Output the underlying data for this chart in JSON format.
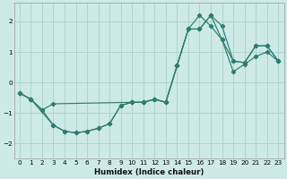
{
  "xlabel": "Humidex (Indice chaleur)",
  "background_color": "#ceeae6",
  "grid_color": "#add4d0",
  "line_color": "#2e7d72",
  "xlim": [
    -0.5,
    23.5
  ],
  "ylim": [
    -2.5,
    2.6
  ],
  "xticks": [
    0,
    1,
    2,
    3,
    4,
    5,
    6,
    7,
    8,
    9,
    10,
    11,
    12,
    13,
    14,
    15,
    16,
    17,
    18,
    19,
    20,
    21,
    22,
    23
  ],
  "yticks": [
    -2,
    -1,
    0,
    1,
    2
  ],
  "line1_x": [
    0,
    1,
    2,
    3,
    10,
    11,
    12,
    13,
    14,
    15,
    16,
    17,
    18,
    19,
    20,
    21,
    22,
    23
  ],
  "line1_y": [
    -0.35,
    -0.55,
    -0.9,
    -0.7,
    -0.65,
    -0.65,
    -0.55,
    -0.65,
    0.55,
    1.75,
    2.2,
    1.85,
    1.4,
    0.7,
    0.65,
    1.2,
    1.2,
    0.7
  ],
  "line2_x": [
    0,
    1,
    2,
    3,
    4,
    5,
    6,
    7,
    8,
    9,
    10,
    11,
    12,
    13,
    14,
    15,
    16,
    17,
    18,
    19,
    20,
    21,
    22,
    23
  ],
  "line2_y": [
    -0.35,
    -0.55,
    -0.9,
    -1.4,
    -1.6,
    -1.65,
    -1.6,
    -1.5,
    -1.35,
    -0.75,
    -0.65,
    -0.65,
    -0.55,
    -0.65,
    0.55,
    1.75,
    1.75,
    2.2,
    1.85,
    0.7,
    0.65,
    1.2,
    1.2,
    0.7
  ],
  "line3_x": [
    0,
    1,
    3,
    4,
    5,
    6,
    7,
    8,
    9,
    10,
    11,
    12,
    13,
    14,
    15,
    16,
    17,
    18,
    19,
    20,
    21,
    22,
    23
  ],
  "line3_y": [
    -0.35,
    -0.55,
    -1.4,
    -1.6,
    -1.65,
    -1.6,
    -1.5,
    -1.35,
    -0.75,
    -0.65,
    -0.65,
    -0.55,
    -0.65,
    0.55,
    1.75,
    1.75,
    2.2,
    1.4,
    0.35,
    0.6,
    0.85,
    1.0,
    0.7
  ]
}
